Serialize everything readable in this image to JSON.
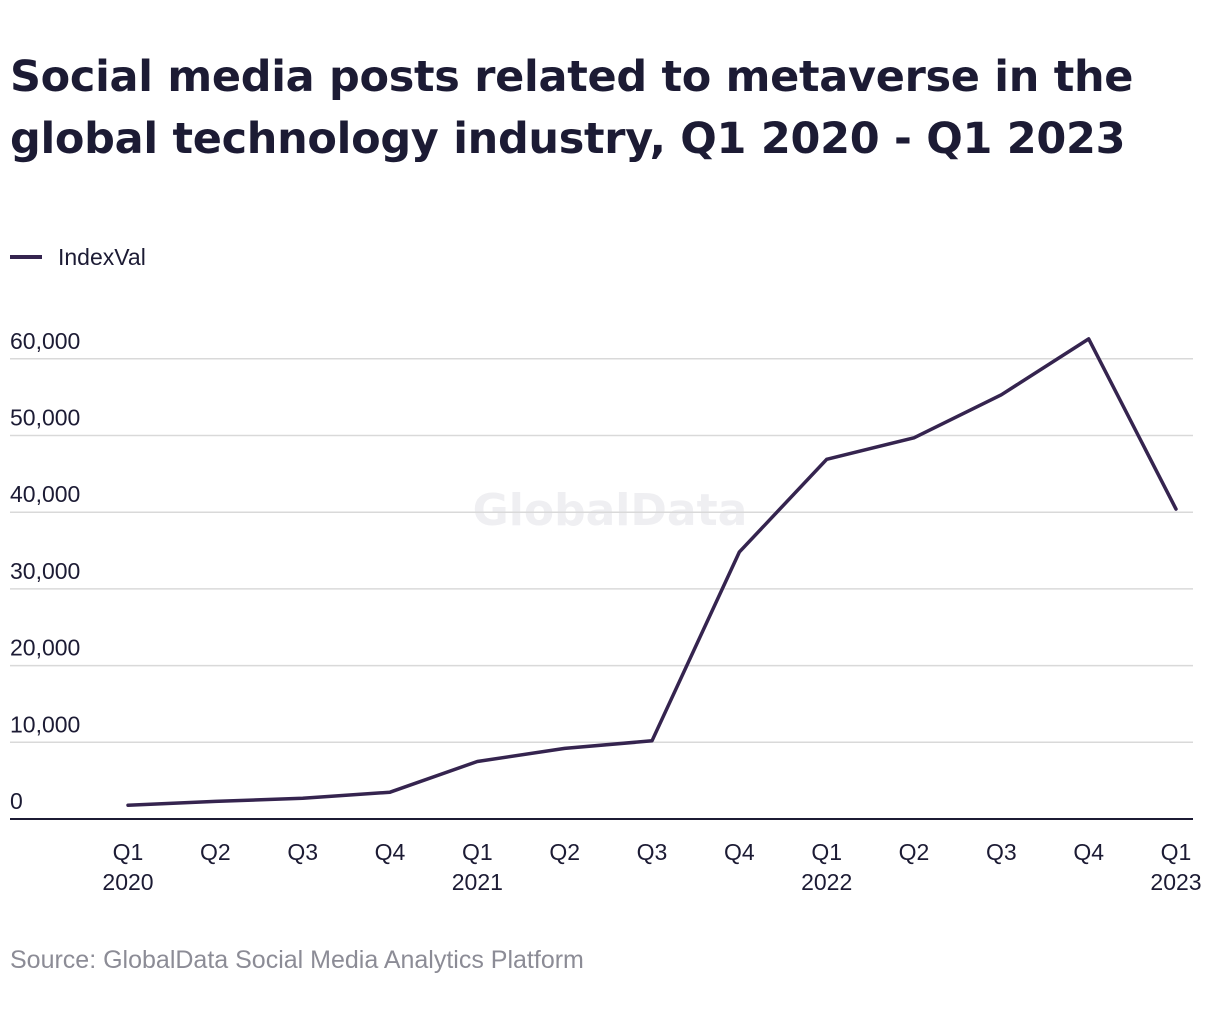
{
  "header": {
    "title": "Social media posts related to metaverse in the global technology industry, Q1 2020 - Q1 2023"
  },
  "watermark": "GlobalData",
  "source": "Source: GlobalData Social Media Analytics Platform",
  "colors": {
    "line": "#35244f",
    "grid": "#d9d9d9",
    "axis": "#1c1b34",
    "text": "#1c1b34"
  },
  "chart_data": {
    "type": "line",
    "title": "Social media posts related to metaverse in the global technology industry, Q1 2020 - Q1 2023",
    "xlabel": "",
    "ylabel": "",
    "categories": [
      [
        "Q1",
        "2020"
      ],
      [
        "Q2",
        ""
      ],
      [
        "Q3",
        ""
      ],
      [
        "Q4",
        ""
      ],
      [
        "Q1",
        "2021"
      ],
      [
        "Q2",
        ""
      ],
      [
        "Q3",
        ""
      ],
      [
        "Q4",
        ""
      ],
      [
        "Q1",
        "2022"
      ],
      [
        "Q2",
        ""
      ],
      [
        "Q3",
        ""
      ],
      [
        "Q4",
        ""
      ],
      [
        "Q1",
        "2023"
      ]
    ],
    "series": [
      {
        "name": "IndexVal",
        "color": "#35244f",
        "values": [
          1800,
          2300,
          2700,
          3500,
          7500,
          9200,
          10200,
          34800,
          46900,
          49700,
          55300,
          62600,
          40400
        ]
      }
    ],
    "ylim": [
      0,
      60000
    ],
    "yticks": [
      0,
      10000,
      20000,
      30000,
      40000,
      50000,
      60000
    ],
    "ytick_labels": [
      "0",
      "10,000",
      "20,000",
      "30,000",
      "40,000",
      "50,000",
      "60,000"
    ],
    "grid": true,
    "legend": "top-left"
  }
}
